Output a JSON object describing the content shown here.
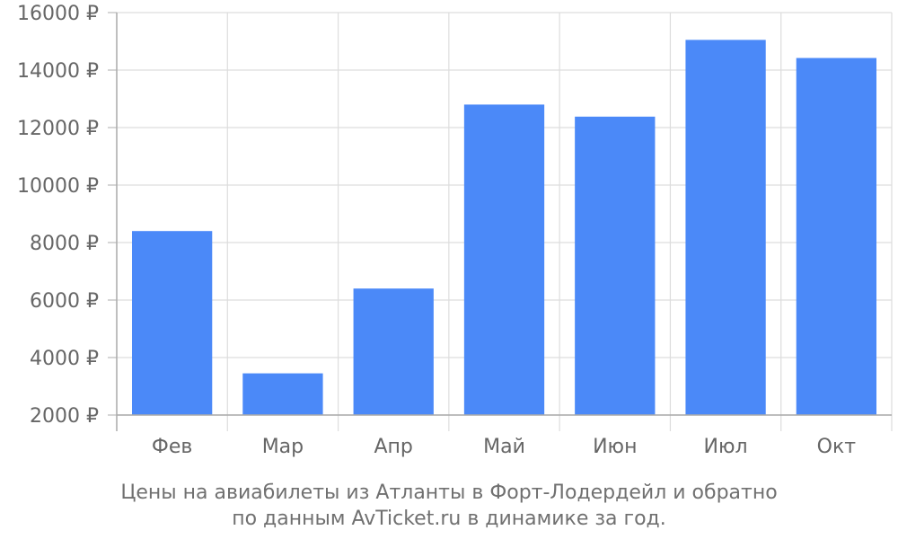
{
  "chart_data": {
    "type": "bar",
    "categories": [
      "Фев",
      "Мар",
      "Апр",
      "Май",
      "Июн",
      "Июл",
      "Окт"
    ],
    "values": [
      8400,
      3450,
      6400,
      12800,
      12380,
      15050,
      14420
    ],
    "y_ticks": [
      "2000 ₽",
      "4000 ₽",
      "6000 ₽",
      "8000 ₽",
      "10000 ₽",
      "12000 ₽",
      "14000 ₽",
      "16000 ₽"
    ],
    "ylim": [
      2000,
      16000
    ],
    "grid": true,
    "bar_color": "#4b89f8",
    "caption_lines": [
      "Цены на авиабилеты из Атланты в Форт-Лодердейл и обратно",
      "по данным AvTicket.ru в динамике за год."
    ]
  }
}
